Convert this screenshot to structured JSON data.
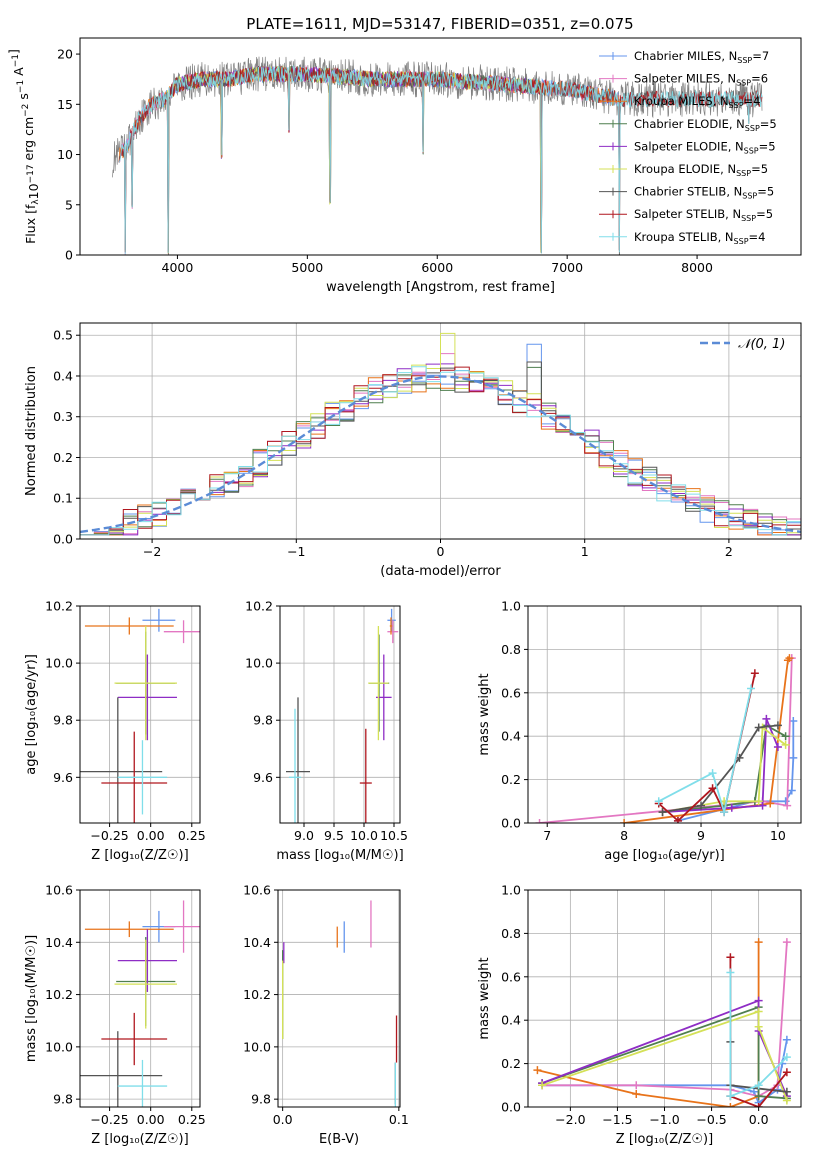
{
  "figure": {
    "title": "PLATE=1611, MJD=53147, FIBERID=0351, z=0.075"
  },
  "series_colors": {
    "Chabrier MILES": "#6495ed",
    "Salpeter MILES": "#e377c2",
    "Kroupa MILES": "#e8731a",
    "Chabrier ELODIE": "#4f7f4f",
    "Salpeter ELODIE": "#8e2dc5",
    "Kroupa ELODIE": "#d4e157",
    "Chabrier STELIB": "#545454",
    "Salpeter STELIB": "#b0171f",
    "Kroupa STELIB": "#80deea",
    "data": "#808080",
    "normal": "#5b8bd6"
  },
  "chart_data": [
    {
      "id": "spectrum",
      "type": "line",
      "title": "PLATE=1611, MJD=53147, FIBERID=0351, z=0.075",
      "xlabel": "wavelength [Angstrom, rest frame]",
      "ylabel": "Flux [f_λ 10^-17 erg cm^-2 s^-1 A^-1]",
      "xlim": [
        3250,
        8800
      ],
      "ylim": [
        0,
        21.6
      ],
      "xticks": [
        4000,
        5000,
        6000,
        7000,
        8000
      ],
      "yticks": [
        0,
        5,
        10,
        15,
        20
      ],
      "grid": false,
      "legend_position": "top-right",
      "legend": [
        {
          "label": "Chabrier MILES, N",
          "sub": "SSP",
          "suffix": "=7"
        },
        {
          "label": "Salpeter MILES, N",
          "sub": "SSP",
          "suffix": "=6"
        },
        {
          "label": "Kroupa MILES, N",
          "sub": "SSP",
          "suffix": "=4"
        },
        {
          "label": "Chabrier ELODIE, N",
          "sub": "SSP",
          "suffix": "=5"
        },
        {
          "label": "Salpeter ELODIE, N",
          "sub": "SSP",
          "suffix": "=5"
        },
        {
          "label": "Kroupa ELODIE, N",
          "sub": "SSP",
          "suffix": "=5"
        },
        {
          "label": "Chabrier STELIB, N",
          "sub": "SSP",
          "suffix": "=5"
        },
        {
          "label": "Salpeter STELIB, N",
          "sub": "SSP",
          "suffix": "=5"
        },
        {
          "label": "Kroupa STELIB, N",
          "sub": "SSP",
          "suffix": "=4"
        }
      ],
      "continuum": {
        "x": [
          3500,
          3600,
          3700,
          3800,
          3900,
          4000,
          4200,
          4400,
          4600,
          5000,
          5500,
          6000,
          6500,
          7000,
          7200,
          7400
        ],
        "y": [
          9.5,
          10.5,
          13.5,
          15.0,
          15.5,
          17.0,
          17.5,
          17.5,
          18.0,
          18.0,
          17.5,
          17.5,
          17.0,
          16.5,
          16.0,
          15.5
        ]
      },
      "data_range": [
        3500,
        8500
      ],
      "model_range": {
        "MILES": [
          3550,
          7400
        ],
        "ELODIE": [
          3900,
          6800
        ],
        "STELIB": [
          3550,
          8500
        ]
      },
      "absorption_lines": [
        {
          "x": 3600,
          "y": 0
        },
        {
          "x": 3650,
          "y": 4.5
        },
        {
          "x": 3930,
          "y": 0
        },
        {
          "x": 4340,
          "y": 9.5
        },
        {
          "x": 4860,
          "y": 12
        },
        {
          "x": 5175,
          "y": 5
        },
        {
          "x": 5890,
          "y": 10
        },
        {
          "x": 6800,
          "y": 0
        },
        {
          "x": 7400,
          "y": 0
        },
        {
          "x": 8400,
          "y": 13
        }
      ]
    },
    {
      "id": "residuals",
      "type": "step",
      "xlabel": "(data-model)/error",
      "ylabel": "Normed distribution",
      "xlim": [
        -2.5,
        2.5
      ],
      "ylim": [
        0,
        0.53
      ],
      "xticks": [
        -2,
        -1,
        0,
        1,
        2
      ],
      "yticks": [
        0.0,
        0.1,
        0.2,
        0.3,
        0.4,
        0.5
      ],
      "grid": true,
      "bin_width": 0.1,
      "legend_position": "top-right",
      "normal_curve": {
        "label": "𝒩(0, 1)",
        "mean": 0,
        "sigma": 1
      }
    },
    {
      "id": "age_vs_Z",
      "type": "errorbar",
      "xlabel": "Z [log₁₀(Z/Z☉)]",
      "ylabel": "age  [log₁₀(age/yr)]",
      "xlim": [
        -0.43,
        0.3
      ],
      "ylim": [
        9.44,
        10.2
      ],
      "xticks": [
        -0.25,
        0.0,
        0.25
      ],
      "yticks": [
        9.6,
        9.8,
        10.0,
        10.2
      ],
      "grid": true,
      "points": [
        {
          "series": "Chabrier MILES",
          "x": 0.05,
          "xerr": 0.1,
          "y": 10.15,
          "yerr": 0.04
        },
        {
          "series": "Salpeter MILES",
          "x": 0.2,
          "xerr": 0.12,
          "y": 10.11,
          "yerr": 0.04
        },
        {
          "series": "Kroupa MILES",
          "x": -0.13,
          "xerr": 0.27,
          "y": 10.13,
          "yerr": 0.03
        },
        {
          "series": "Chabrier ELODIE",
          "x": -0.03,
          "xerr": 0.18,
          "y": 9.93,
          "yerr": 0.18
        },
        {
          "series": "Salpeter ELODIE",
          "x": -0.02,
          "xerr": 0.18,
          "y": 9.88,
          "yerr": 0.15
        },
        {
          "series": "Kroupa ELODIE",
          "x": -0.03,
          "xerr": 0.19,
          "y": 9.93,
          "yerr": 0.2
        },
        {
          "series": "Chabrier STELIB",
          "x": -0.2,
          "xerr": 0.27,
          "y": 9.62,
          "yerr": 0.26
        },
        {
          "series": "Salpeter STELIB",
          "x": -0.1,
          "xerr": 0.2,
          "y": 9.58,
          "yerr": 0.18
        },
        {
          "series": "Kroupa STELIB",
          "x": -0.05,
          "xerr": 0.15,
          "y": 9.6,
          "yerr": 0.13
        }
      ]
    },
    {
      "id": "age_vs_mass",
      "type": "errorbar",
      "xlabel": "mass [log₁₀(M/M☉)]",
      "xlim": [
        8.6,
        10.6
      ],
      "ylim": [
        9.44,
        10.2
      ],
      "xticks": [
        9.0,
        9.5,
        10.0,
        10.5
      ],
      "yticks": [
        9.6,
        9.8,
        10.0,
        10.2
      ],
      "grid": true,
      "points": [
        {
          "series": "Chabrier MILES",
          "x": 10.46,
          "xerr": 0.07,
          "y": 10.15,
          "yerr": 0.04
        },
        {
          "series": "Salpeter MILES",
          "x": 10.48,
          "xerr": 0.09,
          "y": 10.11,
          "yerr": 0.04
        },
        {
          "series": "Kroupa MILES",
          "x": 10.45,
          "xerr": 0.02,
          "y": 10.13,
          "yerr": 0.03
        },
        {
          "series": "Chabrier ELODIE",
          "x": 10.25,
          "xerr": 0.17,
          "y": 9.93,
          "yerr": 0.17
        },
        {
          "series": "Salpeter ELODIE",
          "x": 10.33,
          "xerr": 0.13,
          "y": 9.88,
          "yerr": 0.15
        },
        {
          "series": "Kroupa ELODIE",
          "x": 10.24,
          "xerr": 0.17,
          "y": 9.93,
          "yerr": 0.2
        },
        {
          "series": "Chabrier STELIB",
          "x": 8.9,
          "xerr": 0.2,
          "y": 9.62,
          "yerr": 0.26
        },
        {
          "series": "Salpeter STELIB",
          "x": 10.03,
          "xerr": 0.1,
          "y": 9.58,
          "yerr": 0.19
        },
        {
          "series": "Kroupa STELIB",
          "x": 8.85,
          "xerr": 0.1,
          "y": 9.6,
          "yerr": 0.24
        }
      ]
    },
    {
      "id": "weight_vs_age",
      "type": "line",
      "xlabel": "age  [log₁₀(age/yr)]",
      "ylabel": "mass weight",
      "xlim": [
        6.75,
        10.3
      ],
      "ylim": [
        0,
        1.0
      ],
      "xticks": [
        7,
        8,
        9,
        10
      ],
      "yticks": [
        0.0,
        0.2,
        0.4,
        0.6,
        0.8,
        1.0
      ],
      "grid": true,
      "series": [
        {
          "name": "Chabrier MILES",
          "x": [
            8.7,
            9.7,
            10.1,
            10.18,
            10.2,
            10.2
          ],
          "y": [
            0.01,
            0.1,
            0.1,
            0.15,
            0.3,
            0.47
          ]
        },
        {
          "name": "Salpeter MILES",
          "x": [
            6.9,
            9.8,
            10.12,
            10.18
          ],
          "y": [
            0.0,
            0.1,
            0.08,
            0.76
          ]
        },
        {
          "name": "Kroupa MILES",
          "x": [
            8.0,
            9.9,
            10.13,
            10.15
          ],
          "y": [
            0.0,
            0.09,
            0.75,
            0.76
          ]
        },
        {
          "name": "Chabrier ELODIE",
          "x": [
            8.5,
            9.3,
            9.7,
            9.85,
            10.1
          ],
          "y": [
            0.05,
            0.08,
            0.1,
            0.45,
            0.4
          ]
        },
        {
          "name": "Salpeter ELODIE",
          "x": [
            8.5,
            9.4,
            9.8,
            9.85,
            10.0
          ],
          "y": [
            0.05,
            0.07,
            0.08,
            0.48,
            0.35
          ]
        },
        {
          "name": "Kroupa ELODIE",
          "x": [
            8.5,
            9.3,
            9.75,
            9.8,
            10.1
          ],
          "y": [
            0.05,
            0.1,
            0.1,
            0.44,
            0.36
          ]
        },
        {
          "name": "Chabrier STELIB",
          "x": [
            8.5,
            9.0,
            9.5,
            9.75,
            10.0
          ],
          "y": [
            0.05,
            0.08,
            0.3,
            0.44,
            0.45
          ]
        },
        {
          "name": "Salpeter STELIB",
          "x": [
            8.45,
            8.7,
            9.15,
            9.3,
            9.7
          ],
          "y": [
            0.09,
            0.01,
            0.16,
            0.05,
            0.69
          ]
        },
        {
          "name": "Kroupa STELIB",
          "x": [
            8.45,
            9.15,
            9.3,
            9.65
          ],
          "y": [
            0.1,
            0.23,
            0.05,
            0.62
          ]
        }
      ]
    },
    {
      "id": "mass_vs_Z",
      "type": "errorbar",
      "xlabel": "Z [log₁₀(Z/Z☉)]",
      "ylabel": "mass [log₁₀(M/M☉)]",
      "xlim": [
        -0.43,
        0.3
      ],
      "ylim": [
        9.77,
        10.6
      ],
      "xticks": [
        -0.25,
        0.0,
        0.25
      ],
      "yticks": [
        9.8,
        10.0,
        10.2,
        10.4,
        10.6
      ],
      "grid": true,
      "points": [
        {
          "series": "Chabrier MILES",
          "x": 0.05,
          "xerr": 0.1,
          "y": 10.46,
          "yerr": 0.06
        },
        {
          "series": "Salpeter MILES",
          "x": 0.2,
          "xerr": 0.12,
          "y": 10.46,
          "yerr": 0.1
        },
        {
          "series": "Kroupa MILES",
          "x": -0.13,
          "xerr": 0.27,
          "y": 10.45,
          "yerr": 0.03
        },
        {
          "series": "Chabrier ELODIE",
          "x": -0.03,
          "xerr": 0.18,
          "y": 10.25,
          "yerr": 0.17
        },
        {
          "series": "Salpeter ELODIE",
          "x": -0.02,
          "xerr": 0.18,
          "y": 10.33,
          "yerr": 0.12
        },
        {
          "series": "Kroupa ELODIE",
          "x": -0.03,
          "xerr": 0.19,
          "y": 10.24,
          "yerr": 0.17
        },
        {
          "series": "Chabrier STELIB",
          "x": -0.2,
          "xerr": 0.27,
          "y": 9.89,
          "yerr": 0.17
        },
        {
          "series": "Salpeter STELIB",
          "x": -0.1,
          "xerr": 0.2,
          "y": 10.03,
          "yerr": 0.1
        },
        {
          "series": "Kroupa STELIB",
          "x": -0.05,
          "xerr": 0.15,
          "y": 9.85,
          "yerr": 0.1
        }
      ]
    },
    {
      "id": "mass_vs_EBV",
      "type": "errorbar",
      "xlabel": "E(B-V)",
      "xlim": [
        -0.004,
        0.101
      ],
      "ylim": [
        9.77,
        10.6
      ],
      "xticks": [
        0.0,
        0.1
      ],
      "yticks": [
        9.8,
        10.0,
        10.2,
        10.4,
        10.6
      ],
      "grid": true,
      "points": [
        {
          "series": "Chabrier MILES",
          "x": 0.053,
          "xerr": 0,
          "y": 10.42,
          "yerr": 0.06
        },
        {
          "series": "Salpeter MILES",
          "x": 0.076,
          "xerr": 0,
          "y": 10.47,
          "yerr": 0.09
        },
        {
          "series": "Kroupa MILES",
          "x": 0.047,
          "xerr": 0,
          "y": 10.42,
          "yerr": 0.04
        },
        {
          "series": "Chabrier ELODIE",
          "x": 0.0,
          "xerr": 0,
          "y": 10.2,
          "yerr": 0.17
        },
        {
          "series": "Salpeter ELODIE",
          "x": 0.001,
          "xerr": 0,
          "y": 10.36,
          "yerr": 0.04
        },
        {
          "series": "Kroupa ELODIE",
          "x": 0.0,
          "xerr": 0,
          "y": 10.18,
          "yerr": 0.15
        },
        {
          "series": "Chabrier STELIB",
          "x": 0.097,
          "xerr": 0,
          "y": 9.86,
          "yerr": 0.08
        },
        {
          "series": "Salpeter STELIB",
          "x": 0.098,
          "xerr": 0,
          "y": 10.03,
          "yerr": 0.09
        },
        {
          "series": "Kroupa STELIB",
          "x": 0.097,
          "xerr": 0,
          "y": 9.85,
          "yerr": 0.09
        }
      ]
    },
    {
      "id": "weight_vs_Z",
      "type": "line",
      "xlabel": "Z [log₁₀(Z/Z☉)]",
      "ylabel": "mass weight",
      "xlim": [
        -2.45,
        0.45
      ],
      "ylim": [
        0,
        1.0
      ],
      "xticks": [
        -2.0,
        -1.5,
        -1.0,
        -0.5,
        0.0
      ],
      "yticks": [
        0.0,
        0.2,
        0.4,
        0.6,
        0.8,
        1.0
      ],
      "grid": true,
      "series": [
        {
          "name": "Chabrier MILES",
          "x": [
            -2.3,
            -0.3,
            -0.05,
            0.0,
            0.2,
            0.25,
            0.3
          ],
          "y": [
            0.1,
            0.1,
            0.07,
            0.02,
            0.08,
            0.2,
            0.31
          ]
        },
        {
          "name": "Salpeter MILES",
          "x": [
            -2.3,
            -1.3,
            -0.3,
            0.0,
            0.2,
            0.3
          ],
          "y": [
            0.1,
            0.1,
            0.08,
            0.05,
            0.1,
            0.76
          ]
        },
        {
          "name": "Kroupa MILES",
          "x": [
            -2.35,
            -1.3,
            -0.3,
            0.0,
            0.0
          ],
          "y": [
            0.17,
            0.06,
            0.0,
            0.05,
            0.76
          ]
        },
        {
          "name": "Chabrier ELODIE",
          "x": [
            -2.3,
            0.0,
            0.0,
            0.3
          ],
          "y": [
            0.11,
            0.46,
            0.05,
            0.04
          ]
        },
        {
          "name": "Salpeter ELODIE",
          "x": [
            -2.3,
            0.0,
            0.0,
            0.3
          ],
          "y": [
            0.11,
            0.49,
            0.35,
            0.05
          ]
        },
        {
          "name": "Kroupa ELODIE",
          "x": [
            -2.3,
            0.0,
            0.0,
            0.3
          ],
          "y": [
            0.1,
            0.44,
            0.37,
            0.03
          ]
        },
        {
          "name": "Chabrier STELIB",
          "x": [
            -0.3,
            -0.3,
            0.3
          ],
          "y": [
            0.3,
            0.1,
            0.07
          ]
        },
        {
          "name": "Salpeter STELIB",
          "x": [
            -0.3,
            -0.3,
            0.0,
            0.3
          ],
          "y": [
            0.69,
            0.05,
            0.0,
            0.16
          ]
        },
        {
          "name": "Kroupa STELIB",
          "x": [
            -0.3,
            -0.3,
            0.0,
            0.3
          ],
          "y": [
            0.62,
            0.05,
            0.1,
            0.23
          ]
        }
      ]
    }
  ]
}
